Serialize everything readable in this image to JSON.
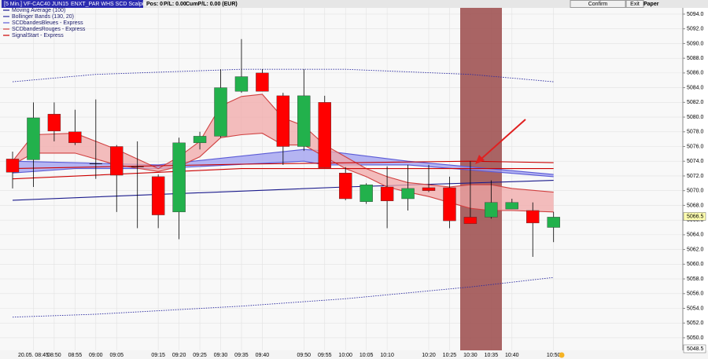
{
  "toolbar": {
    "instrument": "[5 Min.] VF-CAC40 JUN15",
    "strategy": "ENXT_PAR WHS SCD Scalping 5",
    "pos": "Pos: 0",
    "pl": "P/L: 0.00",
    "cum_pl": "CumP/L: 0.00 (EUR)",
    "confirm": "Confirm",
    "exit": "Exit",
    "paper": "Paper"
  },
  "chart_data": {
    "type": "candlestick",
    "categories": [
      null,
      "20.05. 08:45",
      "08:50",
      "08:55",
      "09:00",
      "09:05",
      null,
      "09:15",
      "09:20",
      "09:25",
      "09:30",
      "09:35",
      "09:40",
      null,
      "09:50",
      "09:55",
      "10:00",
      "10:05",
      "10:10",
      null,
      "10:20",
      "10:25",
      "10:30",
      "10:35",
      "10:40",
      null,
      "10:50"
    ],
    "open": [
      5074.3,
      5074.2,
      5080.4,
      5078.0,
      5073.7,
      5076.0,
      5073.3,
      5071.9,
      5067.1,
      5076.5,
      5077.4,
      5083.5,
      5086.0,
      5082.9,
      5076.0,
      5082.0,
      5072.4,
      5068.5,
      5070.5,
      5068.9,
      5070.4,
      5070.4,
      5066.4,
      5066.4,
      5067.5,
      5067.3,
      5065.0
    ],
    "high": [
      5075.3,
      5082.0,
      5082.0,
      5081.0,
      5082.4,
      5076.2,
      5076.7,
      5072.2,
      5077.2,
      5078.0,
      5086.5,
      5090.6,
      5086.5,
      5083.3,
      5086.5,
      5082.9,
      5073.2,
      5071.0,
      5073.3,
      5073.5,
      5073.5,
      5071.9,
      5074.0,
      5071.4,
      5068.9,
      5068.4,
      5067.1
    ],
    "low": [
      5070.3,
      5070.5,
      5076.7,
      5076.2,
      5071.6,
      5067.1,
      5064.9,
      5064.9,
      5063.4,
      5075.6,
      5077.2,
      5083.3,
      5083.5,
      5073.5,
      5075.4,
      5073.1,
      5068.7,
      5068.2,
      5064.9,
      5067.3,
      5069.8,
      5064.9,
      5065.5,
      5066.2,
      5067.5,
      5061.0,
      5063.0
    ],
    "close": [
      5072.5,
      5079.9,
      5078.1,
      5076.5,
      5073.7,
      5072.1,
      5073.3,
      5066.7,
      5076.5,
      5077.4,
      5084.0,
      5085.5,
      5083.5,
      5076.0,
      5082.9,
      5073.1,
      5068.9,
      5070.8,
      5068.6,
      5070.3,
      5070.0,
      5065.9,
      5065.5,
      5068.4,
      5068.4,
      5065.6,
      5066.4
    ],
    "up_color": "#22b14c",
    "down_color": "#ff0000",
    "series": [
      {
        "name": "Moving Average (100)",
        "color": "#1a1a8c",
        "x": [
          0,
          16,
          26
        ],
        "values": [
          5068.7,
          5070.5,
          5071.4
        ]
      },
      {
        "name": "Bollinger Bands (130, 20)",
        "color": "#2a2aa0",
        "dotted": true,
        "x": [
          0,
          4,
          11,
          16,
          22,
          26
        ],
        "upper": [
          5084.8,
          5085.8,
          5086.5,
          5086.5,
          5085.8,
          5084.8
        ],
        "lower": [
          5052.8,
          5053.2,
          5054.3,
          5055.3,
          5056.9,
          5058.2
        ]
      },
      {
        "name": "SCDbandesBleues - Express",
        "color": "#5b5bd6",
        "fill": "#9d9df0",
        "x": [
          0,
          3,
          7,
          14,
          15,
          19,
          26
        ],
        "upper": [
          5074.0,
          5073.8,
          5073.5,
          5075.6,
          5075.4,
          5074.0,
          5072.2
        ],
        "lower": [
          5072.4,
          5073.0,
          5073.0,
          5074.0,
          5073.5,
          5073.5,
          5071.9
        ]
      },
      {
        "name": "SCDbandesRouges - Express",
        "color": "#d04040",
        "fill": "#f2a8a8",
        "x": [
          0,
          1,
          3,
          5,
          7,
          8,
          9,
          10,
          11,
          12,
          13,
          14,
          15,
          16,
          17,
          18,
          19,
          20,
          21,
          22,
          23,
          24,
          26
        ],
        "upper": [
          5074.0,
          5077.6,
          5077.8,
          5075.6,
          5073.0,
          5074.6,
          5076.7,
          5081.5,
          5082.8,
          5083.1,
          5079.9,
          5078.8,
          5076.2,
          5074.6,
          5073.0,
          5071.9,
          5071.1,
          5070.8,
          5070.5,
          5070.8,
          5070.8,
          5070.3,
          5069.8
        ],
        "lower": [
          5073.5,
          5075.1,
          5075.1,
          5073.5,
          5072.6,
          5073.3,
          5074.6,
          5077.2,
          5077.6,
          5077.8,
          5076.2,
          5076.2,
          5074.6,
          5073.0,
          5071.9,
          5070.5,
          5069.8,
          5069.2,
          5068.4,
          5067.6,
          5067.3,
          5067.3,
          5067.1
        ]
      },
      {
        "name": "SignalStart - Express",
        "color": "#cc0000",
        "x": [
          0,
          11,
          22,
          26
        ],
        "upper": [
          5073.0,
          5073.6,
          5074.0,
          5073.8
        ],
        "lower": [
          5071.6,
          5073.0,
          5073.0,
          5073.0
        ]
      }
    ],
    "ylim": [
      5048.5,
      5094.85
    ],
    "yticks": [
      {
        "value": 5050,
        "label": "5050.0"
      },
      {
        "value": 5052,
        "label": "5052.0"
      },
      {
        "value": 5054,
        "label": "5054.0"
      },
      {
        "value": 5056,
        "label": "5056.0"
      },
      {
        "value": 5058,
        "label": "5058.0"
      },
      {
        "value": 5060,
        "label": "5060.0"
      },
      {
        "value": 5062,
        "label": "5062.0"
      },
      {
        "value": 5064,
        "label": "5064.0"
      },
      {
        "value": 5066,
        "label": "5066.0"
      },
      {
        "value": 5068,
        "label": "5068.0"
      },
      {
        "value": 5070,
        "label": "5070.0"
      },
      {
        "value": 5072,
        "label": "5072.0"
      },
      {
        "value": 5074,
        "label": "5074.0"
      },
      {
        "value": 5076,
        "label": "5076.0"
      },
      {
        "value": 5078,
        "label": "5078.0"
      },
      {
        "value": 5080,
        "label": "5080.0"
      },
      {
        "value": 5082,
        "label": "5082.0"
      },
      {
        "value": 5084,
        "label": "5084.0"
      },
      {
        "value": 5086,
        "label": "5086.0"
      },
      {
        "value": 5088,
        "label": "5088.0"
      },
      {
        "value": 5090,
        "label": "5090.0"
      },
      {
        "value": 5092,
        "label": "5092.0"
      },
      {
        "value": 5094,
        "label": "5094.0"
      }
    ],
    "last_price": 5066.5,
    "bottom_price": 5048.5,
    "grid": true
  }
}
